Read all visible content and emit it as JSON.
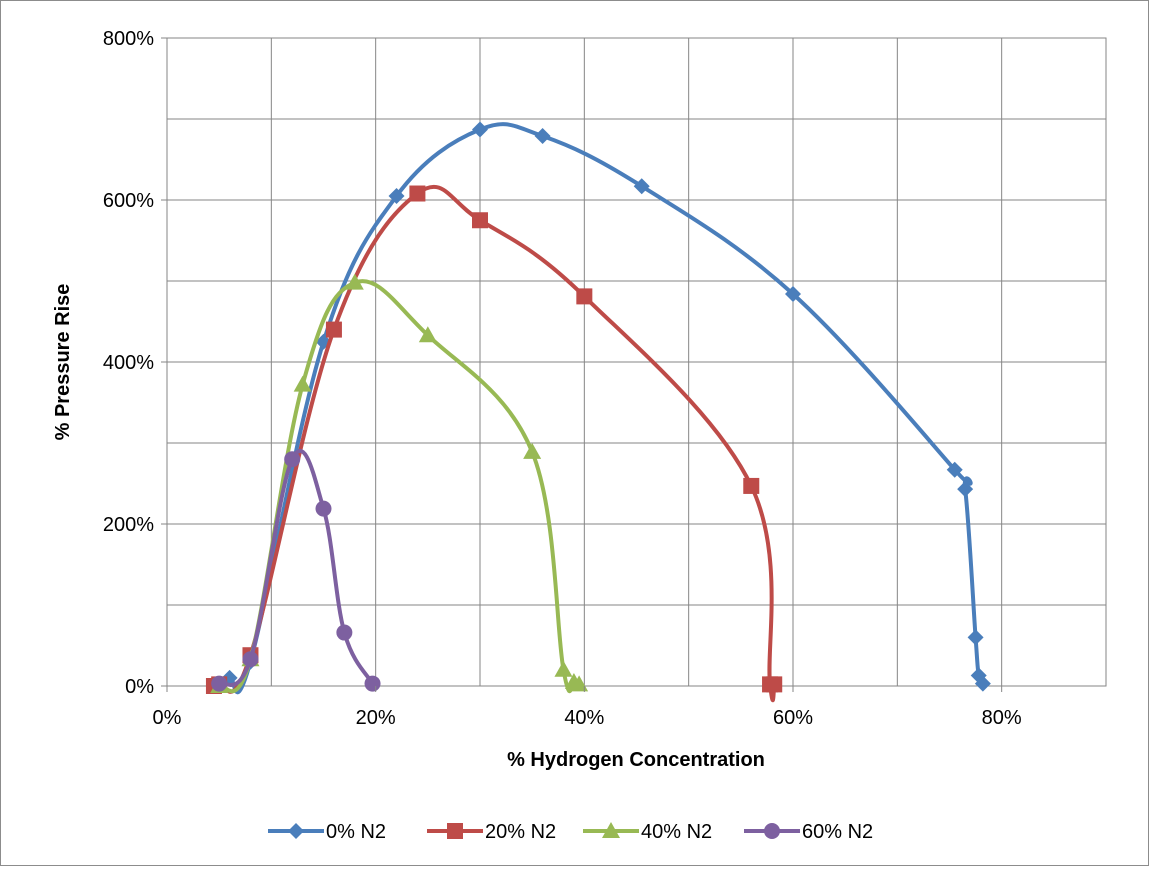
{
  "chart_data": {
    "type": "line",
    "title": "",
    "xlabel": "% Hydrogen Concentration",
    "ylabel": "% Pressure Rise",
    "xlim": [
      0,
      0.9
    ],
    "ylim": [
      0,
      8
    ],
    "x_ticks": [
      0,
      0.2,
      0.4,
      0.6,
      0.8
    ],
    "x_tick_labels": [
      "0%",
      "20%",
      "40%",
      "60%",
      "80%"
    ],
    "y_ticks": [
      0,
      2,
      4,
      6,
      8
    ],
    "y_tick_labels": [
      "0%",
      "200%",
      "400%",
      "600%",
      "800%"
    ],
    "grid": true,
    "legend_position": "bottom",
    "series": [
      {
        "name": "0% N2",
        "color": "#4a7ebb",
        "marker": "diamond",
        "x": [
          0.05,
          0.06,
          0.08,
          0.15,
          0.22,
          0.3,
          0.36,
          0.455,
          0.6,
          0.755,
          0.765,
          0.775,
          0.778,
          0.782
        ],
        "y": [
          0.0,
          0.1,
          0.3,
          4.25,
          6.05,
          6.87,
          6.79,
          6.17,
          4.84,
          2.67,
          2.43,
          0.6,
          0.13,
          0.03
        ]
      },
      {
        "name": "20% N2",
        "color": "#be4b48",
        "marker": "square",
        "x": [
          0.045,
          0.05,
          0.08,
          0.16,
          0.24,
          0.3,
          0.4,
          0.56,
          0.578,
          0.582
        ],
        "y": [
          0.0,
          0.02,
          0.38,
          4.4,
          6.08,
          5.75,
          4.81,
          2.47,
          0.02,
          0.02
        ]
      },
      {
        "name": "40% N2",
        "color": "#98b954",
        "marker": "triangle",
        "x": [
          0.05,
          0.08,
          0.13,
          0.18,
          0.25,
          0.35,
          0.38,
          0.39,
          0.395
        ],
        "y": [
          0.0,
          0.33,
          3.72,
          4.98,
          4.33,
          2.89,
          0.2,
          0.05,
          0.02
        ]
      },
      {
        "name": "60% N2",
        "color": "#7d60a0",
        "marker": "circle",
        "x": [
          0.05,
          0.08,
          0.12,
          0.15,
          0.17,
          0.197
        ],
        "y": [
          0.03,
          0.33,
          2.8,
          2.19,
          0.66,
          0.03
        ]
      }
    ]
  }
}
